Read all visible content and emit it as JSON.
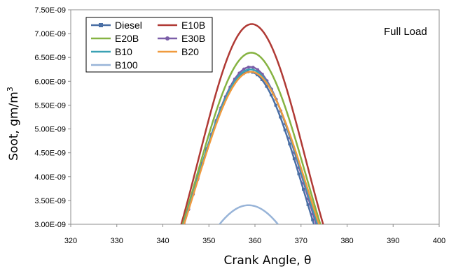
{
  "chart_data": {
    "type": "line",
    "xlabel": "Crank Angle, θ",
    "ylabel_main": "Soot, gm/m",
    "ylabel_sup": "3",
    "annotation": "Full Load",
    "xlim": [
      320,
      400
    ],
    "ylim": [
      3e-09,
      7.5e-09
    ],
    "x_ticks": [
      "320",
      "330",
      "340",
      "350",
      "360",
      "370",
      "380",
      "390",
      "400"
    ],
    "y_ticks": [
      "3.00E-09",
      "3.50E-09",
      "4.00E-09",
      "4.50E-09",
      "5.00E-09",
      "5.50E-09",
      "6.00E-09",
      "6.50E-09",
      "7.00E-09",
      "7.50E-09"
    ],
    "legend_placement": "top-left",
    "grid": false,
    "series": [
      {
        "name": "Diesel",
        "color": "#4a6fa5",
        "marker": "square",
        "peak": 6.2e-09,
        "peak_x": 358.8,
        "x_left": 344.5,
        "x_right": 372.8
      },
      {
        "name": "E10B",
        "color": "#b03a35",
        "marker": "none",
        "peak": 7.2e-09,
        "peak_x": 359.3,
        "x_left": 344.0,
        "x_right": 374.8
      },
      {
        "name": "E20B",
        "color": "#86b342",
        "marker": "none",
        "peak": 6.6e-09,
        "peak_x": 359.2,
        "x_left": 344.3,
        "x_right": 374.2
      },
      {
        "name": "E30B",
        "color": "#7b5ea8",
        "marker": "circle",
        "peak": 6.3e-09,
        "peak_x": 359.0,
        "x_left": 344.6,
        "x_right": 373.3
      },
      {
        "name": "B10",
        "color": "#3aa1b4",
        "marker": "none",
        "peak": 6.25e-09,
        "peak_x": 359.0,
        "x_left": 344.5,
        "x_right": 373.6
      },
      {
        "name": "B20",
        "color": "#f09a3e",
        "marker": "none",
        "peak": 6.2e-09,
        "peak_x": 359.1,
        "x_left": 344.6,
        "x_right": 373.9
      },
      {
        "name": "B100",
        "color": "#98b4d8",
        "marker": "none",
        "peak": 3.4e-09,
        "peak_x": 358.6,
        "x_left": 352.3,
        "x_right": 365.0
      }
    ]
  }
}
